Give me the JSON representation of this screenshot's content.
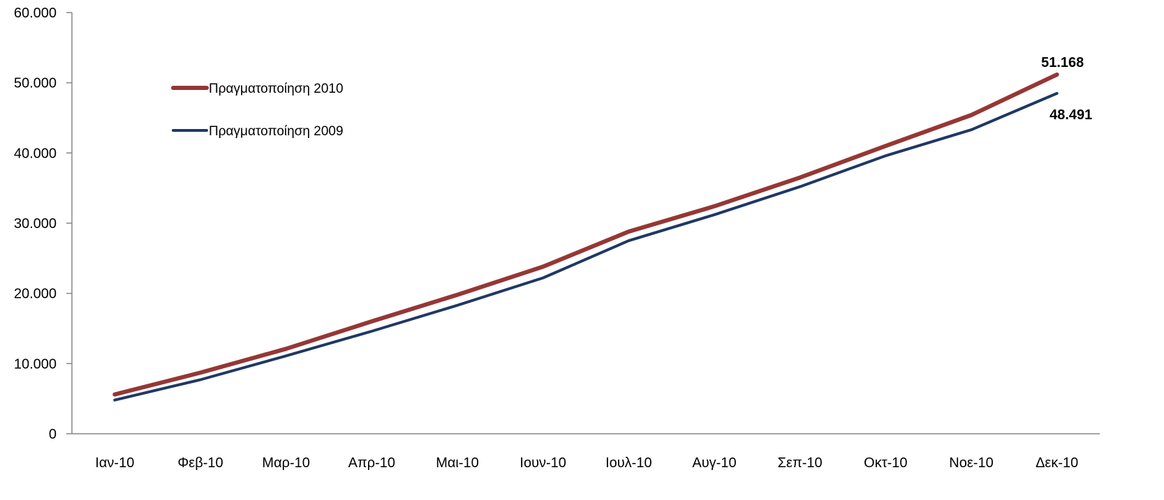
{
  "chart_data": {
    "type": "line",
    "title": "",
    "xlabel": "",
    "ylabel": "",
    "categories": [
      "Ιαν-10",
      "Φεβ-10",
      "Μαρ-10",
      "Απρ-10",
      "Μαι-10",
      "Ιουν-10",
      "Ιουλ-10",
      "Αυγ-10",
      "Σεπ-10",
      "Οκτ-10",
      "Νοε-10",
      "Δεκ-10"
    ],
    "ylim": [
      0,
      60000
    ],
    "yticks": [
      0,
      10000,
      20000,
      30000,
      40000,
      50000,
      60000
    ],
    "ytick_labels": [
      "0",
      "10.000",
      "20.000",
      "30.000",
      "40.000",
      "50.000",
      "60.000"
    ],
    "grid": false,
    "legend_position": "top-left",
    "series": [
      {
        "name": "Πραγματοποίηση 2010",
        "color": "#953735",
        "values": [
          5600,
          8700,
          12100,
          16000,
          19800,
          23800,
          28800,
          32400,
          36500,
          41000,
          45400,
          51168
        ],
        "end_label": "51.168"
      },
      {
        "name": "Πραγματοποίηση 2009",
        "color": "#1F3864",
        "values": [
          4800,
          7700,
          11100,
          14600,
          18300,
          22200,
          27500,
          31200,
          35200,
          39600,
          43300,
          48491
        ],
        "end_label": "48.491"
      }
    ]
  }
}
